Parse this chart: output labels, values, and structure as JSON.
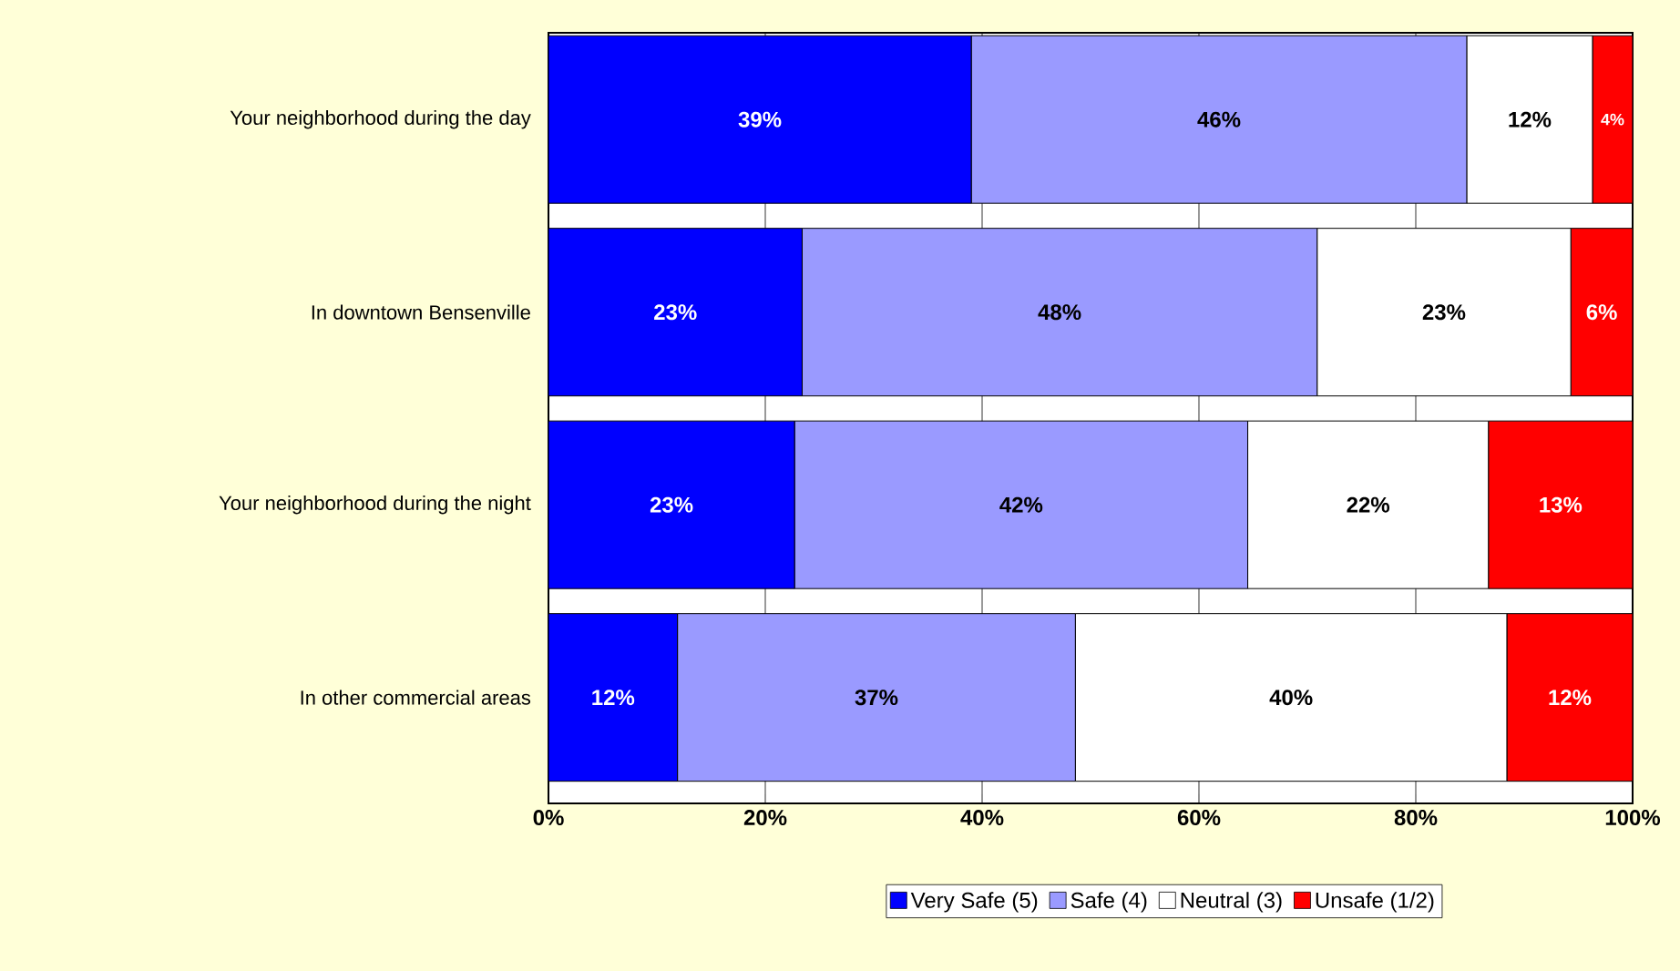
{
  "chart_data": {
    "type": "bar",
    "orientation": "horizontal",
    "stacked": true,
    "categories": [
      "Your neighborhood during the day",
      "In downtown Bensenville",
      "Your neighborhood during the night",
      "In other commercial areas"
    ],
    "series": [
      {
        "name": "Very Safe (5)",
        "color": "#0000ff",
        "values": [
          39.0,
          23.4,
          22.7,
          11.9
        ],
        "value_labels": [
          "39%",
          "23%",
          "23%",
          "12%"
        ]
      },
      {
        "name": "Safe (4)",
        "color": "#9a9aff",
        "values": [
          45.7,
          47.5,
          41.8,
          36.7
        ],
        "value_labels": [
          "46%",
          "48%",
          "42%",
          "37%"
        ]
      },
      {
        "name": "Neutral (3)",
        "color": "#ffffff",
        "values": [
          11.6,
          23.4,
          22.2,
          39.8
        ],
        "value_labels": [
          "12%",
          "23%",
          "22%",
          "40%"
        ]
      },
      {
        "name": "Unsafe (1/2)",
        "color": "#ff0000",
        "values": [
          3.7,
          5.7,
          13.3,
          11.6
        ],
        "value_labels": [
          "4%",
          "6%",
          "13%",
          "12%"
        ]
      }
    ],
    "xlim": [
      0,
      100
    ],
    "xticks": [
      {
        "value": 0,
        "label": "0%"
      },
      {
        "value": 20,
        "label": "20%"
      },
      {
        "value": 40,
        "label": "40%"
      },
      {
        "value": 60,
        "label": "60%"
      },
      {
        "value": 80,
        "label": "80%"
      },
      {
        "value": 100,
        "label": "100%"
      }
    ],
    "grid": "x",
    "legend": "bottom"
  }
}
